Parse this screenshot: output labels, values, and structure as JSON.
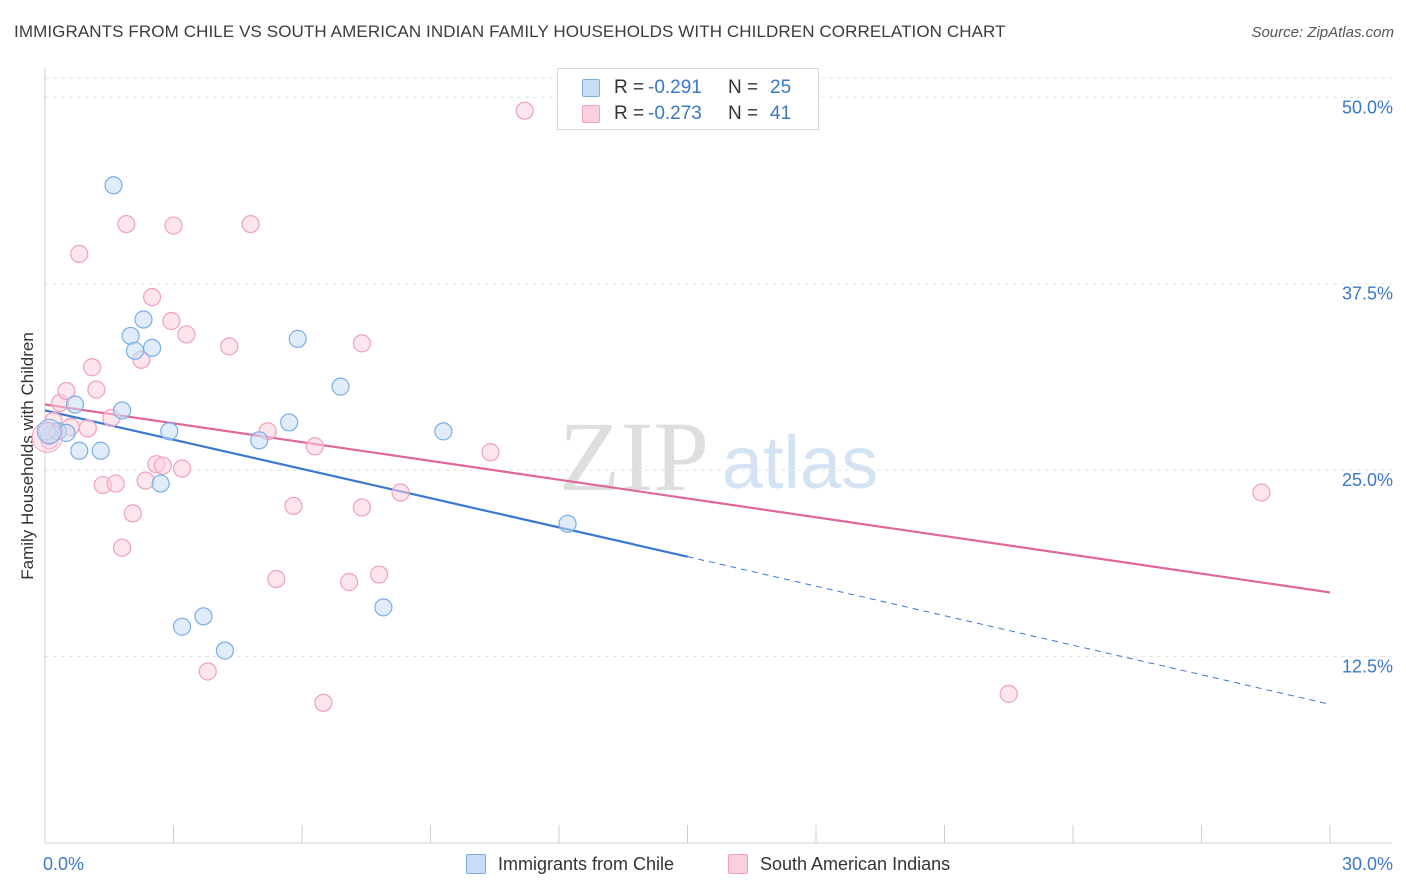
{
  "title": "IMMIGRANTS FROM CHILE VS SOUTH AMERICAN INDIAN FAMILY HOUSEHOLDS WITH CHILDREN CORRELATION CHART",
  "source": "Source: ZipAtlas.com",
  "watermark": {
    "zip": "ZIP",
    "atlas": "atlas"
  },
  "legend": {
    "rows": [
      {
        "r_label": "R =",
        "r_value": "-0.291",
        "n_label": "N =",
        "n_value": "25"
      },
      {
        "r_label": "R =",
        "r_value": "-0.273",
        "n_label": "N =",
        "n_value": "41"
      }
    ]
  },
  "chart_data": {
    "type": "scatter",
    "title": "IMMIGRANTS FROM CHILE VS SOUTH AMERICAN INDIAN FAMILY HOUSEHOLDS WITH CHILDREN CORRELATION CHART",
    "xlabel": "",
    "ylabel": "Family Households with Children",
    "xlim": [
      0,
      30
    ],
    "ylim": [
      0,
      52.5
    ],
    "x_tick_labels": [
      "0.0%",
      "30.0%"
    ],
    "y_ticks": [
      12.5,
      25.0,
      37.5,
      50.0
    ],
    "y_tick_labels": [
      "12.5%",
      "25.0%",
      "37.5%",
      "50.0%"
    ],
    "grid": true,
    "series": [
      {
        "name": "Immigrants from Chile",
        "color": "#7aaee8",
        "fill": "#c8dcf6",
        "line_color": "#3a78d2",
        "points": [
          [
            0.1,
            27.3
          ],
          [
            0.3,
            27.6
          ],
          [
            0.5,
            27.5
          ],
          [
            0.7,
            29.4
          ],
          [
            0.8,
            26.3
          ],
          [
            1.3,
            26.3
          ],
          [
            1.6,
            44.1
          ],
          [
            1.8,
            29.0
          ],
          [
            2.0,
            34.0
          ],
          [
            2.1,
            33.0
          ],
          [
            2.3,
            35.1
          ],
          [
            2.5,
            33.2
          ],
          [
            2.7,
            24.1
          ],
          [
            2.9,
            27.6
          ],
          [
            3.2,
            14.5
          ],
          [
            3.7,
            15.2
          ],
          [
            4.2,
            12.9
          ],
          [
            5.0,
            27.0
          ],
          [
            5.7,
            28.2
          ],
          [
            5.9,
            33.8
          ],
          [
            6.9,
            30.6
          ],
          [
            7.9,
            15.8
          ],
          [
            9.3,
            27.6
          ],
          [
            12.2,
            21.4
          ],
          [
            0.05,
            27.6
          ]
        ],
        "trend": {
          "x0": 0,
          "y0": 29.0,
          "x1": 15.0,
          "y1": 19.2,
          "dashed_to_x": 30,
          "dashed_to_y": 9.3
        }
      },
      {
        "name": "South American Indians",
        "color": "#f0a0bc",
        "fill": "#fbd0de",
        "line_color": "#e0679a",
        "points": [
          [
            0.1,
            27.0
          ],
          [
            0.2,
            28.3
          ],
          [
            0.35,
            29.5
          ],
          [
            0.5,
            30.3
          ],
          [
            0.6,
            27.9
          ],
          [
            0.8,
            39.5
          ],
          [
            1.0,
            27.8
          ],
          [
            1.1,
            31.9
          ],
          [
            1.2,
            30.4
          ],
          [
            1.35,
            24.0
          ],
          [
            1.55,
            28.5
          ],
          [
            1.65,
            24.1
          ],
          [
            1.8,
            19.8
          ],
          [
            1.9,
            41.5
          ],
          [
            2.05,
            22.1
          ],
          [
            2.25,
            32.4
          ],
          [
            2.35,
            24.3
          ],
          [
            2.5,
            36.6
          ],
          [
            2.6,
            25.4
          ],
          [
            2.75,
            25.3
          ],
          [
            2.95,
            35.0
          ],
          [
            3.0,
            41.4
          ],
          [
            3.2,
            25.1
          ],
          [
            3.3,
            34.1
          ],
          [
            3.8,
            11.5
          ],
          [
            4.3,
            33.3
          ],
          [
            4.8,
            41.5
          ],
          [
            5.2,
            27.6
          ],
          [
            5.4,
            17.7
          ],
          [
            5.8,
            22.6
          ],
          [
            6.3,
            26.6
          ],
          [
            6.5,
            9.4
          ],
          [
            7.1,
            17.5
          ],
          [
            7.4,
            22.5
          ],
          [
            7.4,
            33.5
          ],
          [
            7.8,
            18.0
          ],
          [
            8.3,
            23.5
          ],
          [
            10.4,
            26.2
          ],
          [
            11.2,
            49.1
          ],
          [
            22.5,
            10.0
          ],
          [
            28.4,
            23.5
          ]
        ],
        "trend": {
          "x0": 0,
          "y0": 29.4,
          "x1": 30,
          "y1": 16.8
        }
      }
    ]
  }
}
